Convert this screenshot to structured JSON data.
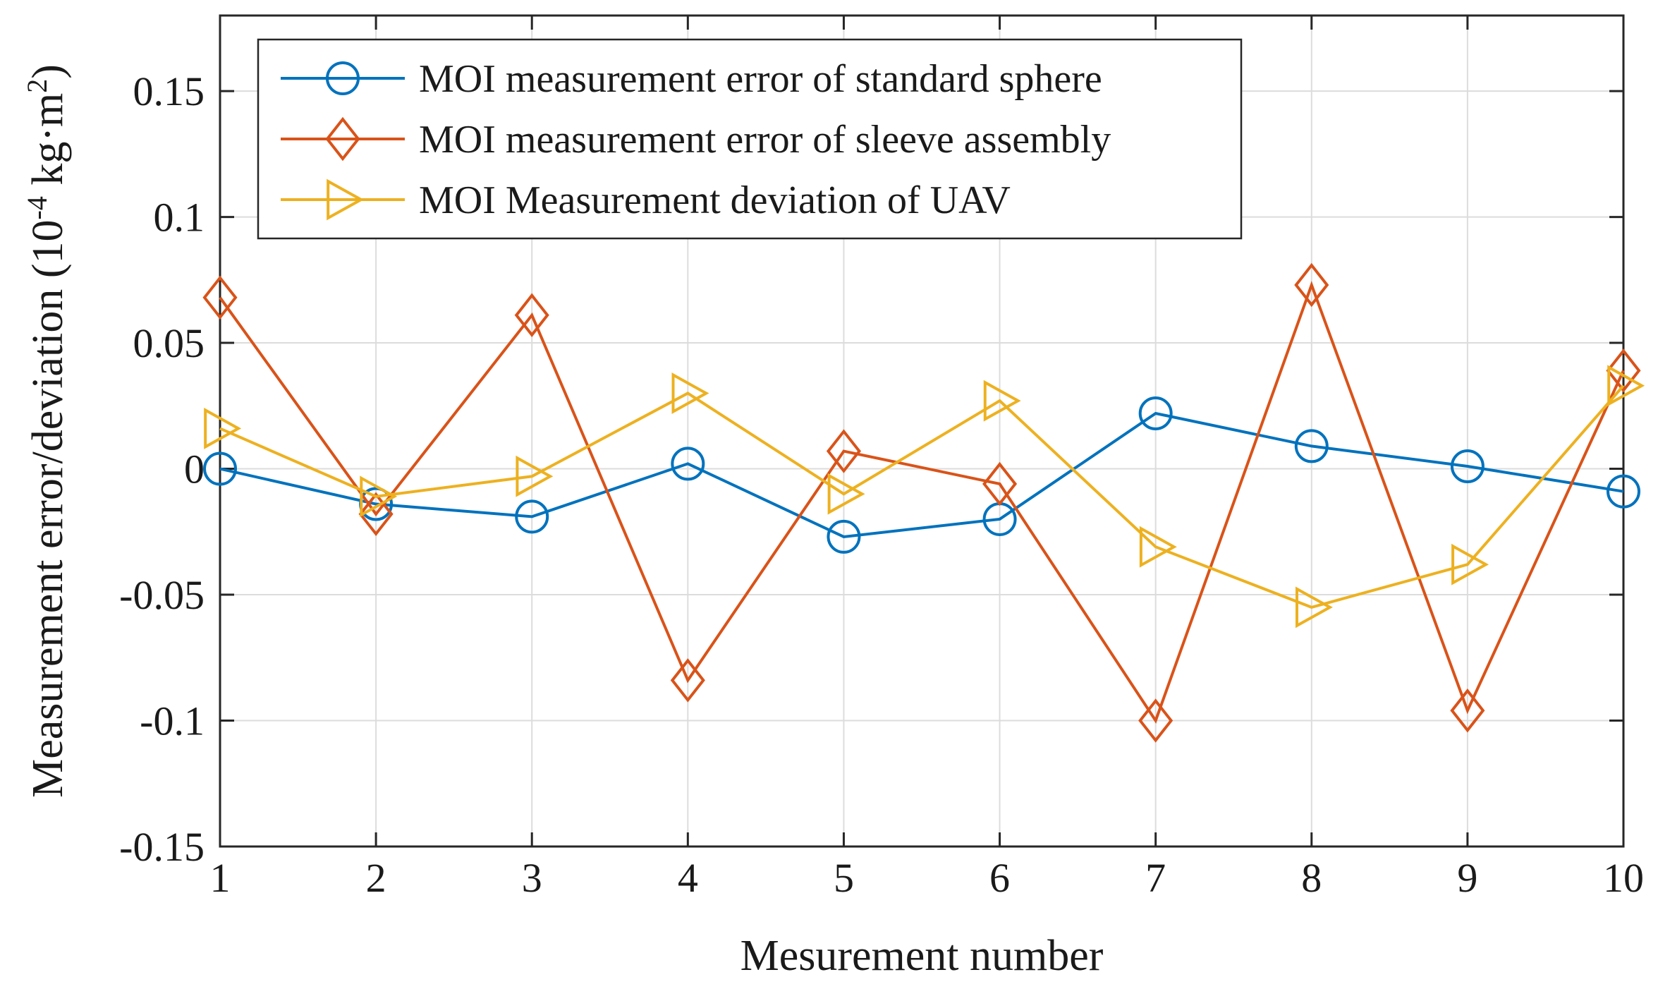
{
  "chart_data": {
    "type": "line",
    "title": "",
    "xlabel": "Mesurement number",
    "ylabel_main": "Measurement error/deviation (10",
    "ylabel_exp1": "-4",
    "ylabel_unit": " kg·m",
    "ylabel_exp2": "2",
    "ylabel_close": ")",
    "x": [
      1,
      2,
      3,
      4,
      5,
      6,
      7,
      8,
      9,
      10
    ],
    "xlim": [
      1,
      10
    ],
    "ylim": [
      -0.15,
      0.18
    ],
    "x_ticks": [
      1,
      2,
      3,
      4,
      5,
      6,
      7,
      8,
      9,
      10
    ],
    "y_ticks": [
      -0.15,
      -0.1,
      -0.05,
      0,
      0.05,
      0.1,
      0.15
    ],
    "y_tick_labels": [
      "-0.15",
      "-0.1",
      "-0.05",
      "0",
      "0.05",
      "0.1",
      "0.15"
    ],
    "grid": true,
    "legend_position": "top-left",
    "series": [
      {
        "name": "MOI measurement error of standard sphere",
        "marker": "circle",
        "color": "#0072BD",
        "values": [
          0.0,
          -0.014,
          -0.019,
          0.002,
          -0.027,
          -0.02,
          0.022,
          0.009,
          0.001,
          -0.009
        ]
      },
      {
        "name": "MOI measurement error of sleeve assembly",
        "marker": "diamond",
        "color": "#D95319",
        "values": [
          0.068,
          -0.018,
          0.061,
          -0.084,
          0.007,
          -0.006,
          -0.1,
          0.073,
          -0.096,
          0.039
        ]
      },
      {
        "name": "MOI Measurement deviation of UAV",
        "marker": "triangle-right",
        "color": "#EDB120",
        "values": [
          0.016,
          -0.011,
          -0.003,
          0.03,
          -0.01,
          0.027,
          -0.031,
          -0.055,
          -0.038,
          0.033
        ]
      }
    ]
  }
}
